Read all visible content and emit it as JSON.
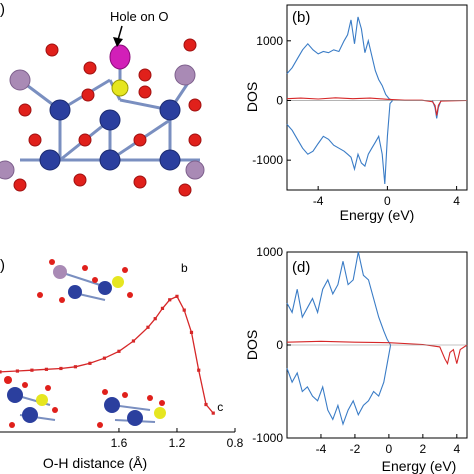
{
  "panels": {
    "a_label": ")",
    "a_annotation": "Hole on O",
    "c_label": ")"
  },
  "chart_data": [
    {
      "id": "b",
      "type": "line",
      "label": "(b)",
      "xlabel": "Energy (eV)",
      "ylabel": "DOS",
      "xlim": [
        -5.8,
        4.6
      ],
      "ylim": [
        -1500,
        1600
      ],
      "xticks": [
        -4,
        0,
        4
      ],
      "xticklabels": [
        "-4",
        "0",
        "4"
      ],
      "yticks": [
        1000,
        0,
        -1000
      ],
      "yticklabels": [
        "1000",
        "0",
        "-1000"
      ],
      "series": [
        {
          "color": "#3a7cc6",
          "x": [
            -5.8,
            -5.5,
            -5.2,
            -4.9,
            -4.6,
            -4.3,
            -4.0,
            -3.7,
            -3.4,
            -3.1,
            -2.8,
            -2.5,
            -2.3,
            -2.1,
            -1.9,
            -1.7,
            -1.5,
            -1.3,
            -1.1,
            -0.9,
            -0.7,
            -0.5,
            -0.3,
            -0.1,
            0.1,
            0.3
          ],
          "y": [
            450,
            550,
            700,
            850,
            950,
            850,
            780,
            820,
            800,
            850,
            820,
            1000,
            1100,
            1350,
            950,
            1400,
            1200,
            800,
            1000,
            750,
            500,
            350,
            250,
            100,
            30,
            0
          ]
        },
        {
          "color": "#3a7cc6",
          "x": [
            -5.8,
            -5.5,
            -5.2,
            -4.9,
            -4.6,
            -4.3,
            -4.0,
            -3.7,
            -3.4,
            -3.1,
            -2.8,
            -2.5,
            -2.3,
            -2.1,
            -1.9,
            -1.7,
            -1.5,
            -1.3,
            -1.1,
            -0.9,
            -0.7,
            -0.5,
            -0.3,
            -0.15,
            0.0,
            0.15,
            0.3
          ],
          "y": [
            -400,
            -500,
            -650,
            -800,
            -900,
            -850,
            -720,
            -600,
            -650,
            -750,
            -800,
            -850,
            -900,
            -950,
            -1150,
            -900,
            -1050,
            -1100,
            -900,
            -800,
            -700,
            -600,
            -900,
            -1400,
            -600,
            -50,
            0
          ]
        },
        {
          "color": "#3a7cc6",
          "x": [
            2.6,
            2.75,
            2.85,
            2.95,
            3.1
          ],
          "y": [
            0,
            -120,
            -300,
            -120,
            0
          ]
        },
        {
          "color": "#d62728",
          "x": [
            -5.8,
            -5.0,
            -4.0,
            -3.0,
            -2.0,
            -1.0,
            0.0,
            1.0,
            2.0,
            2.6,
            2.75,
            2.85,
            2.95,
            3.1,
            4.6
          ],
          "y": [
            30,
            40,
            25,
            45,
            30,
            40,
            20,
            5,
            5,
            -20,
            -80,
            -250,
            -80,
            -10,
            0
          ]
        }
      ]
    },
    {
      "id": "c",
      "type": "line",
      "xlabel": "O-H distance (Å)",
      "ylabel": "",
      "xlim": [
        2.42,
        0.8
      ],
      "ylim": [
        -0.06,
        1.0
      ],
      "xticks": [
        1.6,
        1.2,
        0.8
      ],
      "xticklabels": [
        "1.6",
        "1.2",
        "0.8"
      ],
      "point_labels": [
        {
          "text": "b",
          "x": 1.2,
          "y": 0.86
        },
        {
          "text": "c",
          "x": 0.95,
          "y": 0.05
        }
      ],
      "series": [
        {
          "color": "#d62728",
          "x": [
            2.42,
            2.3,
            2.2,
            2.1,
            2.0,
            1.9,
            1.8,
            1.7,
            1.6,
            1.5,
            1.4,
            1.35,
            1.3,
            1.25,
            1.2,
            1.15,
            1.1,
            1.05,
            1.0,
            0.95
          ],
          "y": [
            0.29,
            0.295,
            0.3,
            0.305,
            0.31,
            0.32,
            0.34,
            0.37,
            0.41,
            0.47,
            0.55,
            0.6,
            0.66,
            0.71,
            0.73,
            0.65,
            0.52,
            0.3,
            0.1,
            0.05
          ]
        }
      ]
    },
    {
      "id": "d",
      "type": "line",
      "label": "(d)",
      "xlabel": "Energy (eV)",
      "ylabel": "DOS",
      "xlim": [
        -6.0,
        4.6
      ],
      "ylim": [
        -1000,
        1000
      ],
      "xticks": [
        -4,
        -2,
        0,
        2,
        4
      ],
      "xticklabels": [
        "-4",
        "-2",
        "0",
        "2",
        "4"
      ],
      "yticks": [
        1000,
        0,
        -1000
      ],
      "yticklabels": [
        "1000",
        "0",
        "-1000"
      ],
      "series": [
        {
          "color": "#3a7cc6",
          "x": [
            -6.0,
            -5.7,
            -5.4,
            -5.1,
            -4.8,
            -4.5,
            -4.2,
            -3.9,
            -3.6,
            -3.3,
            -3.0,
            -2.7,
            -2.4,
            -2.1,
            -1.8,
            -1.5,
            -1.2,
            -0.9,
            -0.6,
            -0.3,
            -0.1,
            0.1
          ],
          "y": [
            450,
            350,
            600,
            300,
            400,
            500,
            350,
            600,
            700,
            550,
            650,
            900,
            650,
            700,
            1000,
            750,
            700,
            500,
            300,
            150,
            60,
            0
          ]
        },
        {
          "color": "#3a7cc6",
          "x": [
            -6.0,
            -5.7,
            -5.4,
            -5.1,
            -4.8,
            -4.5,
            -4.2,
            -3.9,
            -3.6,
            -3.3,
            -3.0,
            -2.7,
            -2.4,
            -2.1,
            -1.8,
            -1.5,
            -1.2,
            -0.9,
            -0.6,
            -0.3,
            -0.1,
            0.1
          ],
          "y": [
            -250,
            -400,
            -300,
            -500,
            -450,
            -550,
            -600,
            -450,
            -700,
            -800,
            -650,
            -850,
            -700,
            -600,
            -750,
            -650,
            -600,
            -500,
            -550,
            -400,
            -200,
            0
          ]
        },
        {
          "color": "#d62728",
          "x": [
            -6.0,
            -4.0,
            -2.0,
            0.0,
            2.0,
            3.0,
            3.3,
            3.45,
            3.6,
            3.8,
            4.0,
            4.2,
            4.6
          ],
          "y": [
            30,
            40,
            30,
            25,
            5,
            -20,
            -150,
            -200,
            -80,
            -50,
            -200,
            -50,
            0
          ]
        }
      ]
    }
  ]
}
